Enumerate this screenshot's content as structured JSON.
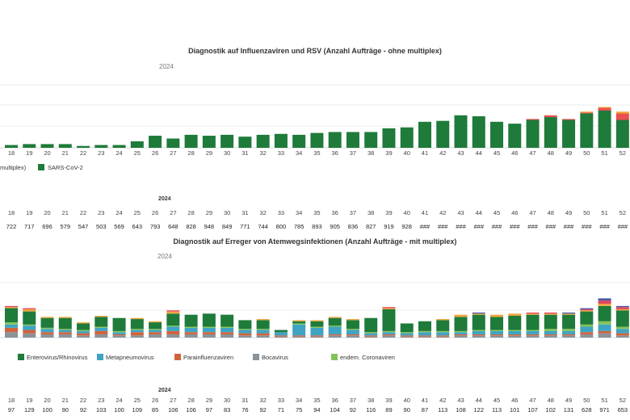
{
  "weeks": [
    "18",
    "19",
    "20",
    "21",
    "22",
    "23",
    "24",
    "25",
    "26",
    "27",
    "28",
    "29",
    "30",
    "31",
    "32",
    "33",
    "34",
    "35",
    "36",
    "37",
    "38",
    "39",
    "40",
    "41",
    "42",
    "43",
    "44",
    "45",
    "46",
    "47",
    "48",
    "49",
    "50",
    "51",
    "52"
  ],
  "year_label": "2024",
  "colors": {
    "sars": "#1e7b3a",
    "influenza": "#e94f4f",
    "rsv": "#f0a63c",
    "entero": "#1e7b3a",
    "metapneumo": "#3fa4c4",
    "parainfluenza": "#d2633a",
    "boca": "#8a9399",
    "corona": "#84c35b",
    "top_extra": "#f0a63c",
    "top_red": "#e2475b",
    "top_purple": "#4b56a8"
  },
  "chart_data": [
    {
      "type": "bar",
      "title": "Diagnostik auf Influenzaviren und RSV (Anzahl Aufträge - ohne multiplex)",
      "year": "2024",
      "categories": [
        "18",
        "19",
        "20",
        "21",
        "22",
        "23",
        "24",
        "25",
        "26",
        "27",
        "28",
        "29",
        "30",
        "31",
        "32",
        "33",
        "34",
        "35",
        "36",
        "37",
        "38",
        "39",
        "40",
        "41",
        "42",
        "43",
        "44",
        "45",
        "46",
        "47",
        "48",
        "49",
        "50",
        "51",
        "52"
      ],
      "series": [
        {
          "name": "SARS-CoV-2",
          "values": [
            3,
            4,
            4,
            4,
            2,
            3,
            3,
            7,
            13,
            10,
            14,
            13,
            14,
            12,
            14,
            15,
            14,
            16,
            17,
            17,
            17,
            21,
            22,
            28,
            29,
            35,
            34,
            28,
            26,
            30,
            33,
            30,
            37,
            40,
            30
          ]
        },
        {
          "name": "",
          "values": [
            0,
            0,
            0,
            0,
            0,
            0,
            0,
            0,
            0,
            0,
            0,
            0,
            0,
            0,
            0,
            0,
            0,
            0,
            0,
            0,
            0,
            0,
            0,
            0,
            0,
            0,
            0,
            0,
            0,
            1,
            2,
            1,
            1,
            3,
            7
          ]
        },
        {
          "name": "",
          "values": [
            0,
            0,
            0,
            0,
            0,
            0,
            0,
            0,
            0,
            0,
            0,
            0,
            0,
            0,
            0,
            0,
            0,
            0,
            0,
            0,
            0,
            0,
            0,
            0,
            0,
            0,
            0,
            0,
            0,
            0,
            0,
            0,
            1,
            1,
            2
          ]
        }
      ],
      "legend": [
        {
          "label": "multiplex)"
        },
        {
          "label": "SARS-CoV-2"
        }
      ],
      "table": {
        "year": "2024",
        "weeks": [
          "18",
          "19",
          "20",
          "21",
          "22",
          "23",
          "24",
          "25",
          "26",
          "27",
          "28",
          "29",
          "30",
          "31",
          "32",
          "33",
          "34",
          "35",
          "36",
          "37",
          "38",
          "39",
          "40",
          "41",
          "42",
          "43",
          "44",
          "45",
          "46",
          "47",
          "48",
          "49",
          "50",
          "51",
          "52"
        ],
        "values": [
          "722",
          "717",
          "696",
          "579",
          "547",
          "503",
          "569",
          "643",
          "793",
          "648",
          "828",
          "948",
          "849",
          "771",
          "744",
          "800",
          "785",
          "893",
          "905",
          "836",
          "827",
          "919",
          "928",
          "###",
          "###",
          "###",
          "###",
          "###",
          "###",
          "###",
          "###",
          "###",
          "###",
          "###",
          "###"
        ]
      }
    },
    {
      "type": "bar",
      "title": "Diagnostik auf Erreger von Atemwegsinfektionen (Anzahl Aufträge - mit multiplex)",
      "year": "2024",
      "categories": [
        "18",
        "19",
        "20",
        "21",
        "22",
        "23",
        "24",
        "25",
        "26",
        "27",
        "28",
        "29",
        "30",
        "31",
        "32",
        "33",
        "34",
        "35",
        "36",
        "37",
        "38",
        "39",
        "40",
        "41",
        "42",
        "43",
        "44",
        "45",
        "46",
        "47",
        "48",
        "49",
        "50",
        "51",
        "52"
      ],
      "series": [
        {
          "name": "Enterovirus/Rhinovirus",
          "values": [
            13,
            12,
            9,
            10,
            6,
            9,
            12,
            9,
            6,
            11,
            11,
            12,
            11,
            8,
            8,
            2,
            2,
            5,
            7,
            8,
            13,
            20,
            8,
            9,
            10,
            13,
            14,
            12,
            13,
            14,
            13,
            13,
            12,
            14,
            15
          ]
        },
        {
          "name": "Metapneumovirus",
          "values": [
            3,
            4,
            3,
            2,
            2,
            3,
            2,
            2,
            2,
            4,
            4,
            4,
            4,
            3,
            3,
            3,
            10,
            7,
            7,
            4,
            2,
            2,
            2,
            3,
            3,
            2,
            3,
            3,
            3,
            3,
            3,
            3,
            5,
            6,
            4
          ]
        },
        {
          "name": "Parainfluenzaviren",
          "values": [
            4,
            3,
            2,
            2,
            2,
            3,
            1,
            3,
            2,
            3,
            2,
            2,
            2,
            2,
            2,
            1,
            1,
            1,
            1,
            1,
            1,
            1,
            1,
            1,
            1,
            1,
            1,
            1,
            1,
            1,
            1,
            1,
            2,
            2,
            2
          ]
        },
        {
          "name": "Bocavirus",
          "values": [
            5,
            4,
            3,
            3,
            2,
            3,
            2,
            2,
            3,
            3,
            3,
            3,
            3,
            2,
            2,
            1,
            1,
            1,
            2,
            2,
            1,
            2,
            1,
            1,
            1,
            2,
            2,
            2,
            2,
            2,
            2,
            2,
            3,
            4,
            2
          ]
        },
        {
          "name": "endem. Coronaviren",
          "values": [
            2,
            1,
            1,
            1,
            1,
            1,
            1,
            1,
            1,
            1,
            1,
            1,
            1,
            1,
            1,
            0,
            1,
            1,
            1,
            1,
            1,
            1,
            1,
            1,
            1,
            1,
            1,
            1,
            1,
            1,
            2,
            2,
            2,
            3,
            2
          ]
        },
        {
          "name": "",
          "values": [
            1,
            2,
            1,
            1,
            1,
            1,
            0,
            1,
            1,
            2,
            0,
            0,
            0,
            0,
            1,
            0,
            1,
            1,
            1,
            1,
            0,
            1,
            0,
            0,
            1,
            2,
            1,
            2,
            2,
            1,
            1,
            1,
            1,
            2,
            1
          ]
        },
        {
          "name": "",
          "values": [
            1,
            1,
            0,
            0,
            0,
            0,
            0,
            0,
            0,
            1,
            0,
            0,
            0,
            0,
            0,
            0,
            0,
            0,
            0,
            0,
            0,
            1,
            0,
            0,
            0,
            0,
            0,
            0,
            0,
            1,
            1,
            0,
            1,
            3,
            2
          ]
        },
        {
          "name": "",
          "values": [
            0,
            0,
            0,
            0,
            0,
            0,
            0,
            0,
            0,
            0,
            0,
            0,
            0,
            0,
            0,
            0,
            0,
            0,
            0,
            0,
            0,
            0,
            0,
            0,
            0,
            0,
            1,
            0,
            0,
            0,
            0,
            1,
            1,
            2,
            1
          ]
        }
      ],
      "table": {
        "year": "2024",
        "weeks": [
          "18",
          "19",
          "20",
          "21",
          "22",
          "23",
          "24",
          "25",
          "26",
          "27",
          "28",
          "29",
          "30",
          "31",
          "32",
          "33",
          "34",
          "35",
          "36",
          "37",
          "38",
          "39",
          "40",
          "41",
          "42",
          "43",
          "44",
          "45",
          "46",
          "47",
          "48",
          "49",
          "50",
          "51",
          "52"
        ],
        "values": [
          "97",
          "129",
          "100",
          "90",
          "92",
          "103",
          "100",
          "109",
          "85",
          "106",
          "106",
          "97",
          "83",
          "76",
          "92",
          "71",
          "75",
          "94",
          "104",
          "92",
          "116",
          "89",
          "90",
          "87",
          "113",
          "108",
          "122",
          "113",
          "101",
          "107",
          "102",
          "131",
          "628",
          "971",
          "653"
        ]
      }
    }
  ]
}
